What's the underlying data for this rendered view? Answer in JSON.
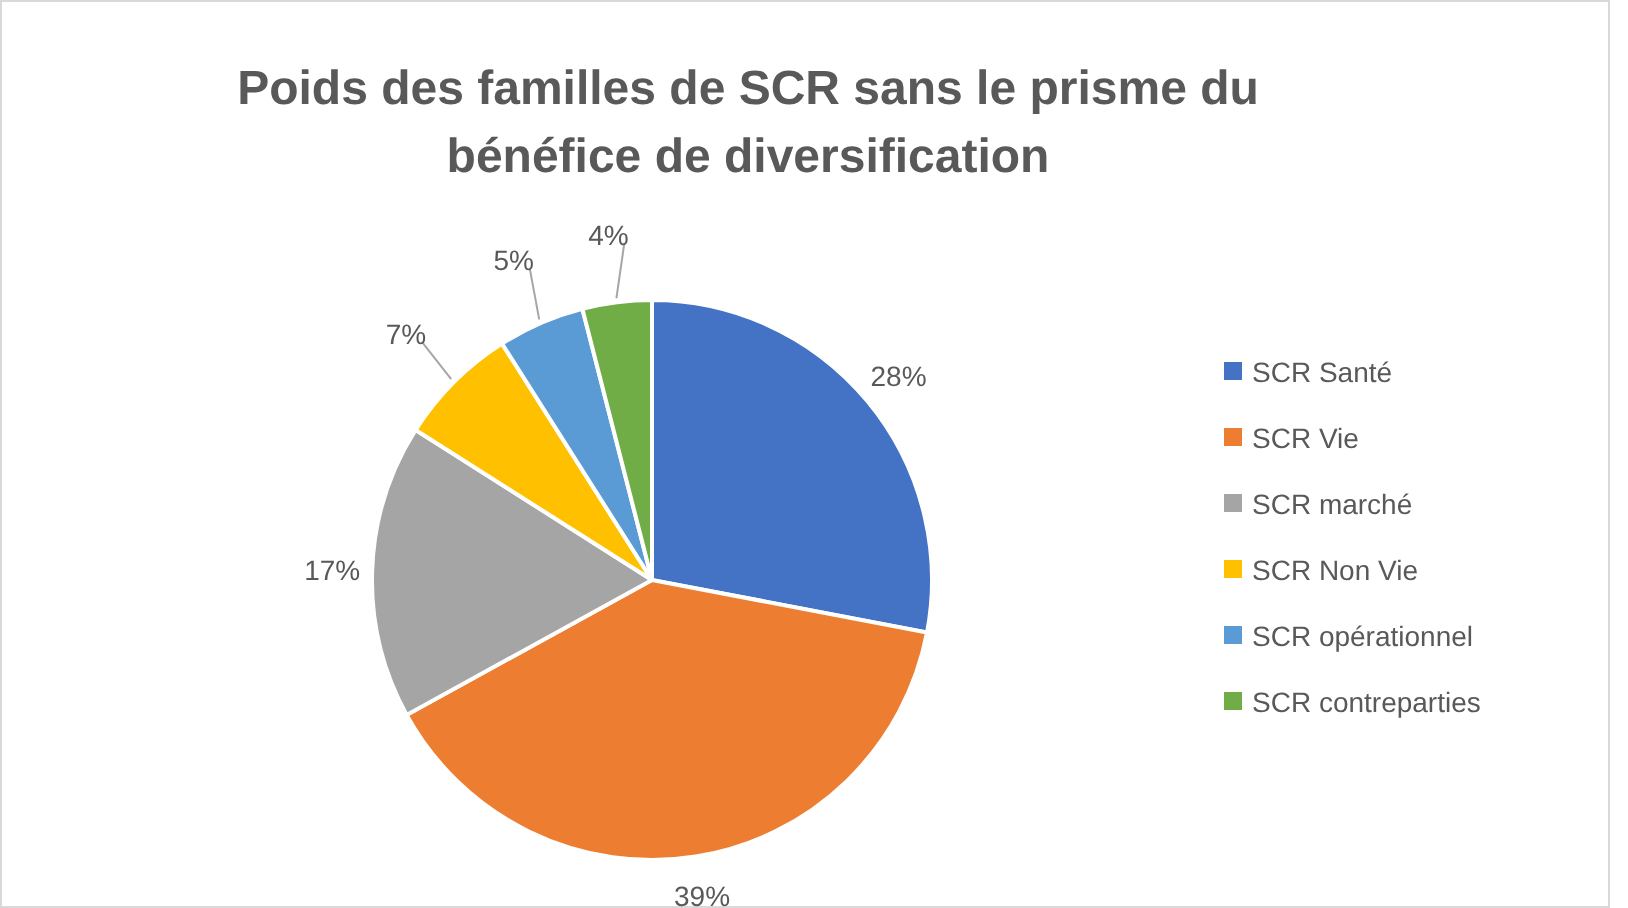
{
  "chart_data": {
    "type": "pie",
    "title": "Poids des familles de SCR sans le prisme du bénéfice de diversification",
    "categories": [
      "SCR Santé",
      "SCR Vie",
      "SCR marché",
      "SCR Non Vie",
      "SCR opérationnel",
      "SCR contreparties"
    ],
    "values": [
      28,
      39,
      17,
      7,
      5,
      4
    ],
    "colors": [
      "#4472c4",
      "#ed7d31",
      "#a5a5a5",
      "#ffc000",
      "#5b9bd5",
      "#70ad47"
    ],
    "value_labels": [
      "28%",
      "39%",
      "17%",
      "7%",
      "5%",
      "4%"
    ],
    "legend": "right"
  }
}
